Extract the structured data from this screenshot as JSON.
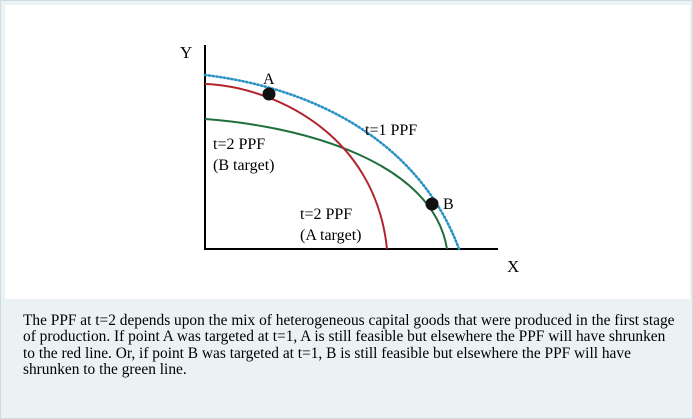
{
  "diagram": {
    "axes": {
      "y_label": "Y",
      "x_label": "X"
    },
    "curves": [
      {
        "id": "t1",
        "label": "t=1 PPF",
        "color": "#2a93c4",
        "style": "dotted"
      },
      {
        "id": "t2a",
        "label_line1": "t=2 PPF",
        "label_line2": "(A target)",
        "color": "#b2232c",
        "style": "solid"
      },
      {
        "id": "t2b",
        "label_line1": "t=2 PPF",
        "label_line2": "(B target)",
        "color": "#1f6e3c",
        "style": "solid"
      }
    ],
    "points": [
      {
        "id": "A",
        "label": "A"
      },
      {
        "id": "B",
        "label": "B"
      }
    ]
  },
  "caption": "The PPF at t=2 depends upon the mix of heterogeneous capital goods that were produced in the first stage of production. If point A was targeted at t=1, A is still feasible but elsewhere the PPF will have shrunken to the red line. Or, if point B was targeted at t=1, B is still feasible but elsewhere the PPF will have shrunken to the green line.",
  "colors": {
    "background_tint": "#eaf2f4",
    "axis": "#000000",
    "t1_curve": "#2a93c4",
    "red_curve": "#b2232c",
    "green_curve": "#1f6e3c"
  }
}
